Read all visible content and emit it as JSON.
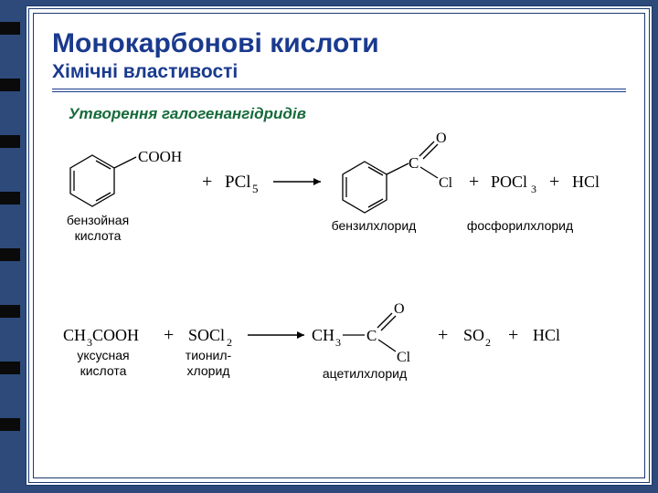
{
  "header": {
    "title": "Монокарбонові кислоти",
    "subtitle": "Хімічні властивості"
  },
  "section_title": "Утворення галогенангідридів",
  "colors": {
    "frame": "#1a3a6e",
    "title": "#1a3a8e",
    "section": "#166a3a",
    "bg_outer": "#2d4a7a",
    "bg_inner": "#ffffff",
    "text": "#000000"
  },
  "markers": [
    24,
    86,
    148,
    210,
    272,
    334,
    396,
    458
  ],
  "reaction1": {
    "reagent1": {
      "formula_suffix": "COOH",
      "label": "бензойная\nкислота"
    },
    "plus1": "+",
    "reagent2": {
      "formula": "PCl",
      "sub": "5"
    },
    "product1": {
      "label": "бензилхлорид",
      "o": "O",
      "cl": "Cl"
    },
    "plus2": "+",
    "product2": {
      "formula": "POCl",
      "sub": "3",
      "label": "фосфорилхлорид"
    },
    "plus3": "+",
    "product3": {
      "formula": "HCl"
    }
  },
  "reaction2": {
    "reagent1": {
      "formula": "CH",
      "sub": "3",
      "suffix": "COOH",
      "label": "уксусная\nкислота"
    },
    "plus1": "+",
    "reagent2": {
      "formula": "SOCl",
      "sub": "2",
      "label": "тионил-\nхлорид"
    },
    "product1": {
      "prefix": "CH",
      "sub": "3",
      "o": "O",
      "cl": "Cl",
      "label": "ацетилхлорид"
    },
    "plus2": "+",
    "product2": {
      "formula": "SO",
      "sub": "2"
    },
    "plus3": "+",
    "product3": {
      "formula": "HCl"
    }
  },
  "benzene_ring": {
    "stroke": "#000000",
    "stroke_width": 1.3
  }
}
